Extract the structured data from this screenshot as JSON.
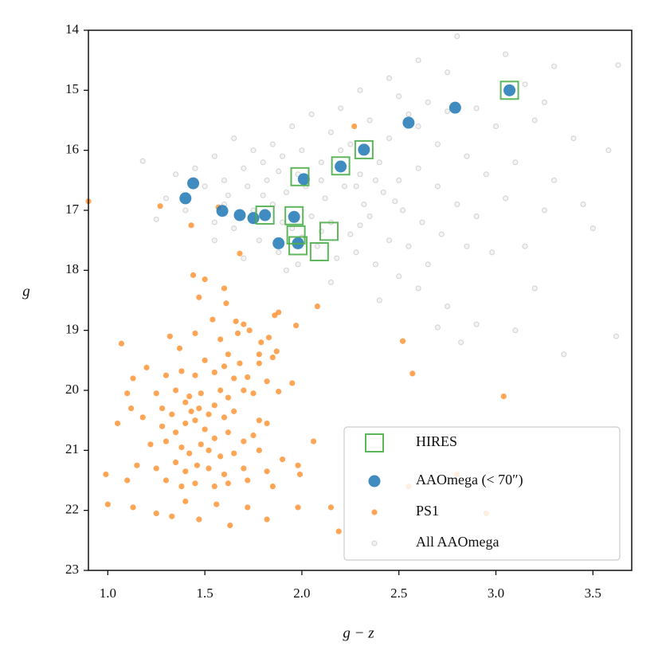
{
  "chart_data": {
    "type": "scatter",
    "x_label": "g − z",
    "y_label": "g",
    "xlim": [
      0.9,
      3.7
    ],
    "ylim": [
      23,
      14
    ],
    "xticks": [
      {
        "value": 1,
        "label": "1.0"
      },
      1.5,
      {
        "value": 2,
        "label": "2.0"
      },
      2.5,
      {
        "value": 3,
        "label": "3.0"
      },
      3.5
    ],
    "yticks": [
      14,
      15,
      16,
      17,
      18,
      19,
      20,
      21,
      22,
      23
    ],
    "legend": "lower right",
    "series": [
      {
        "name": "HIRES",
        "color": "#4daf4a",
        "marker": "square-open",
        "alpha": 0.9,
        "x": [
          3.07,
          2.32,
          2.2,
          1.99,
          1.81,
          1.96,
          2.14,
          1.97,
          1.98,
          2.09
        ],
        "y": [
          15.0,
          15.99,
          16.26,
          16.44,
          17.08,
          17.09,
          17.35,
          17.41,
          17.59,
          17.69
        ]
      },
      {
        "name": "AAOmega (< 70″)",
        "color": "#1f77b4",
        "marker": "circle",
        "alpha": 0.85,
        "x": [
          3.07,
          2.79,
          2.55,
          2.32,
          2.2,
          2.01,
          1.44,
          1.4,
          1.59,
          1.68,
          1.75,
          1.81,
          1.96,
          1.88,
          1.98
        ],
        "y": [
          15.0,
          15.29,
          15.54,
          15.99,
          16.27,
          16.48,
          16.55,
          16.8,
          17.01,
          17.08,
          17.13,
          17.08,
          17.11,
          17.55,
          17.55
        ]
      },
      {
        "name": "PS1",
        "color": "#ff7f0e",
        "marker": "dot",
        "alpha": 0.7,
        "x": [
          0.9,
          1.27,
          1.43,
          1.57,
          1.68,
          2.27,
          1.44,
          1.5,
          1.47,
          1.6,
          1.61,
          1.54,
          1.66,
          1.7,
          1.67,
          1.73,
          1.86,
          1.88,
          1.83,
          1.97,
          2.08,
          1.45,
          1.32,
          1.37,
          1.58,
          1.62,
          1.79,
          1.78,
          1.87,
          2.52,
          1.07,
          1.5,
          1.6,
          1.68,
          1.78,
          1.85,
          1.2,
          1.13,
          1.3,
          1.38,
          1.45,
          1.55,
          1.65,
          1.72,
          1.82,
          1.95,
          2.57,
          1.1,
          1.25,
          1.35,
          1.42,
          1.48,
          1.58,
          1.62,
          1.7,
          1.75,
          1.88,
          3.04,
          1.12,
          1.05,
          1.18,
          1.28,
          1.33,
          1.4,
          1.43,
          1.47,
          1.52,
          1.55,
          1.6,
          1.65,
          1.78,
          1.82,
          1.28,
          1.35,
          1.4,
          1.45,
          1.5,
          1.55,
          1.62,
          1.7,
          1.75,
          1.22,
          1.3,
          1.38,
          1.42,
          1.48,
          1.52,
          1.58,
          1.65,
          1.78,
          1.9,
          2.06,
          1.15,
          1.25,
          1.35,
          1.4,
          1.46,
          1.52,
          1.6,
          1.7,
          1.82,
          1.98,
          0.99,
          1.1,
          1.3,
          1.38,
          1.45,
          1.55,
          1.62,
          1.72,
          1.85,
          1.99,
          2.55,
          1.0,
          1.13,
          1.25,
          1.33,
          1.4,
          1.47,
          1.56,
          1.63,
          1.72,
          1.82,
          1.98,
          2.15,
          2.19,
          2.95,
          2.8
        ],
        "y": [
          16.85,
          16.93,
          17.25,
          16.95,
          17.72,
          15.6,
          18.08,
          18.15,
          18.45,
          18.3,
          18.55,
          18.82,
          18.85,
          18.9,
          19.05,
          19.0,
          18.75,
          18.7,
          19.12,
          18.92,
          18.6,
          19.05,
          19.1,
          19.3,
          19.15,
          19.4,
          19.2,
          19.4,
          19.35,
          19.18,
          19.22,
          19.5,
          19.6,
          19.55,
          19.55,
          19.45,
          19.62,
          19.8,
          19.75,
          19.68,
          19.75,
          19.7,
          19.8,
          19.78,
          19.85,
          19.88,
          19.72,
          20.05,
          20.05,
          20.0,
          20.1,
          20.05,
          20.0,
          20.12,
          20.0,
          20.05,
          20.02,
          20.1,
          20.3,
          20.55,
          20.45,
          20.3,
          20.4,
          20.2,
          20.35,
          20.3,
          20.4,
          20.25,
          20.45,
          20.35,
          20.5,
          20.55,
          20.6,
          20.7,
          20.55,
          20.5,
          20.65,
          20.8,
          20.7,
          20.85,
          20.75,
          20.9,
          20.85,
          20.95,
          21.05,
          20.9,
          21.0,
          21.1,
          21.05,
          21.0,
          21.15,
          20.85,
          21.25,
          21.3,
          21.2,
          21.35,
          21.25,
          21.3,
          21.4,
          21.3,
          21.35,
          21.25,
          21.4,
          21.5,
          21.5,
          21.6,
          21.55,
          21.6,
          21.55,
          21.5,
          21.6,
          21.4,
          21.6,
          21.9,
          21.95,
          22.05,
          22.1,
          21.85,
          22.15,
          21.9,
          22.25,
          21.95,
          22.15,
          21.95,
          21.95,
          22.35,
          22.05,
          21.4
        ]
      },
      {
        "name": "All AAOmega",
        "color": "#808080",
        "marker": "circle-open",
        "alpha": 0.18,
        "x": [
          2.8,
          2.6,
          3.05,
          3.3,
          3.63,
          2.75,
          3.15,
          2.45,
          2.3,
          2.5,
          2.65,
          2.9,
          3.0,
          3.2,
          3.4,
          3.58,
          2.2,
          2.05,
          1.95,
          2.15,
          2.35,
          2.45,
          2.6,
          2.7,
          2.85,
          2.95,
          3.1,
          3.05,
          3.25,
          3.5,
          1.85,
          1.75,
          1.65,
          1.55,
          1.45,
          1.35,
          1.18,
          1.3,
          1.5,
          1.6,
          1.7,
          1.8,
          1.9,
          2.0,
          2.1,
          2.2,
          2.3,
          2.4,
          2.5,
          2.6,
          2.7,
          2.8,
          2.9,
          1.62,
          1.72,
          1.82,
          1.92,
          2.02,
          2.12,
          2.22,
          2.32,
          2.42,
          2.52,
          2.62,
          2.72,
          1.55,
          1.65,
          1.75,
          1.85,
          1.95,
          2.05,
          2.15,
          2.25,
          2.35,
          2.45,
          2.55,
          2.65,
          1.78,
          1.88,
          1.98,
          2.08,
          2.18,
          2.28,
          2.38,
          2.5,
          2.6,
          2.75,
          2.9,
          3.1,
          3.35,
          3.62,
          3.2,
          2.7,
          2.82,
          2.4,
          2.15,
          1.92,
          1.7,
          1.55,
          3.15,
          3.3,
          3.45,
          2.98,
          2.85,
          1.4,
          1.25,
          2.25,
          2.55,
          2.75,
          3.25,
          2.1,
          1.98,
          1.88,
          2.28,
          2.38,
          2.48,
          2.0,
          2.1,
          1.9,
          2.3,
          1.6,
          1.8
        ],
        "y": [
          14.1,
          14.5,
          14.4,
          14.6,
          14.58,
          14.7,
          14.9,
          14.8,
          15.0,
          15.1,
          15.2,
          15.3,
          15.6,
          15.5,
          15.8,
          16.0,
          15.3,
          15.4,
          15.6,
          15.7,
          15.5,
          15.8,
          15.6,
          15.9,
          16.1,
          16.4,
          16.2,
          16.8,
          17.0,
          17.3,
          15.9,
          16.0,
          15.8,
          16.1,
          16.3,
          16.4,
          16.18,
          16.8,
          16.6,
          16.5,
          16.3,
          16.2,
          16.1,
          16.0,
          16.2,
          16.0,
          16.4,
          16.2,
          16.5,
          16.3,
          16.6,
          16.9,
          17.1,
          16.75,
          16.6,
          16.5,
          16.7,
          16.6,
          16.8,
          16.6,
          16.9,
          16.7,
          17.0,
          17.2,
          17.4,
          17.2,
          17.3,
          17.0,
          16.9,
          17.3,
          17.1,
          17.2,
          17.4,
          17.1,
          17.5,
          17.6,
          17.9,
          17.5,
          17.7,
          17.9,
          17.6,
          17.8,
          17.7,
          17.9,
          18.1,
          18.3,
          18.6,
          18.9,
          19.0,
          19.4,
          19.1,
          18.3,
          18.95,
          19.2,
          18.5,
          18.2,
          18.0,
          17.8,
          17.5,
          17.6,
          16.5,
          16.9,
          17.7,
          17.6,
          17.0,
          17.15,
          15.9,
          15.4,
          15.35,
          15.2,
          16.5,
          16.4,
          16.35,
          16.6,
          16.5,
          16.85,
          17.45,
          17.35,
          17.2,
          17.25,
          16.9,
          16.75
        ]
      }
    ]
  }
}
